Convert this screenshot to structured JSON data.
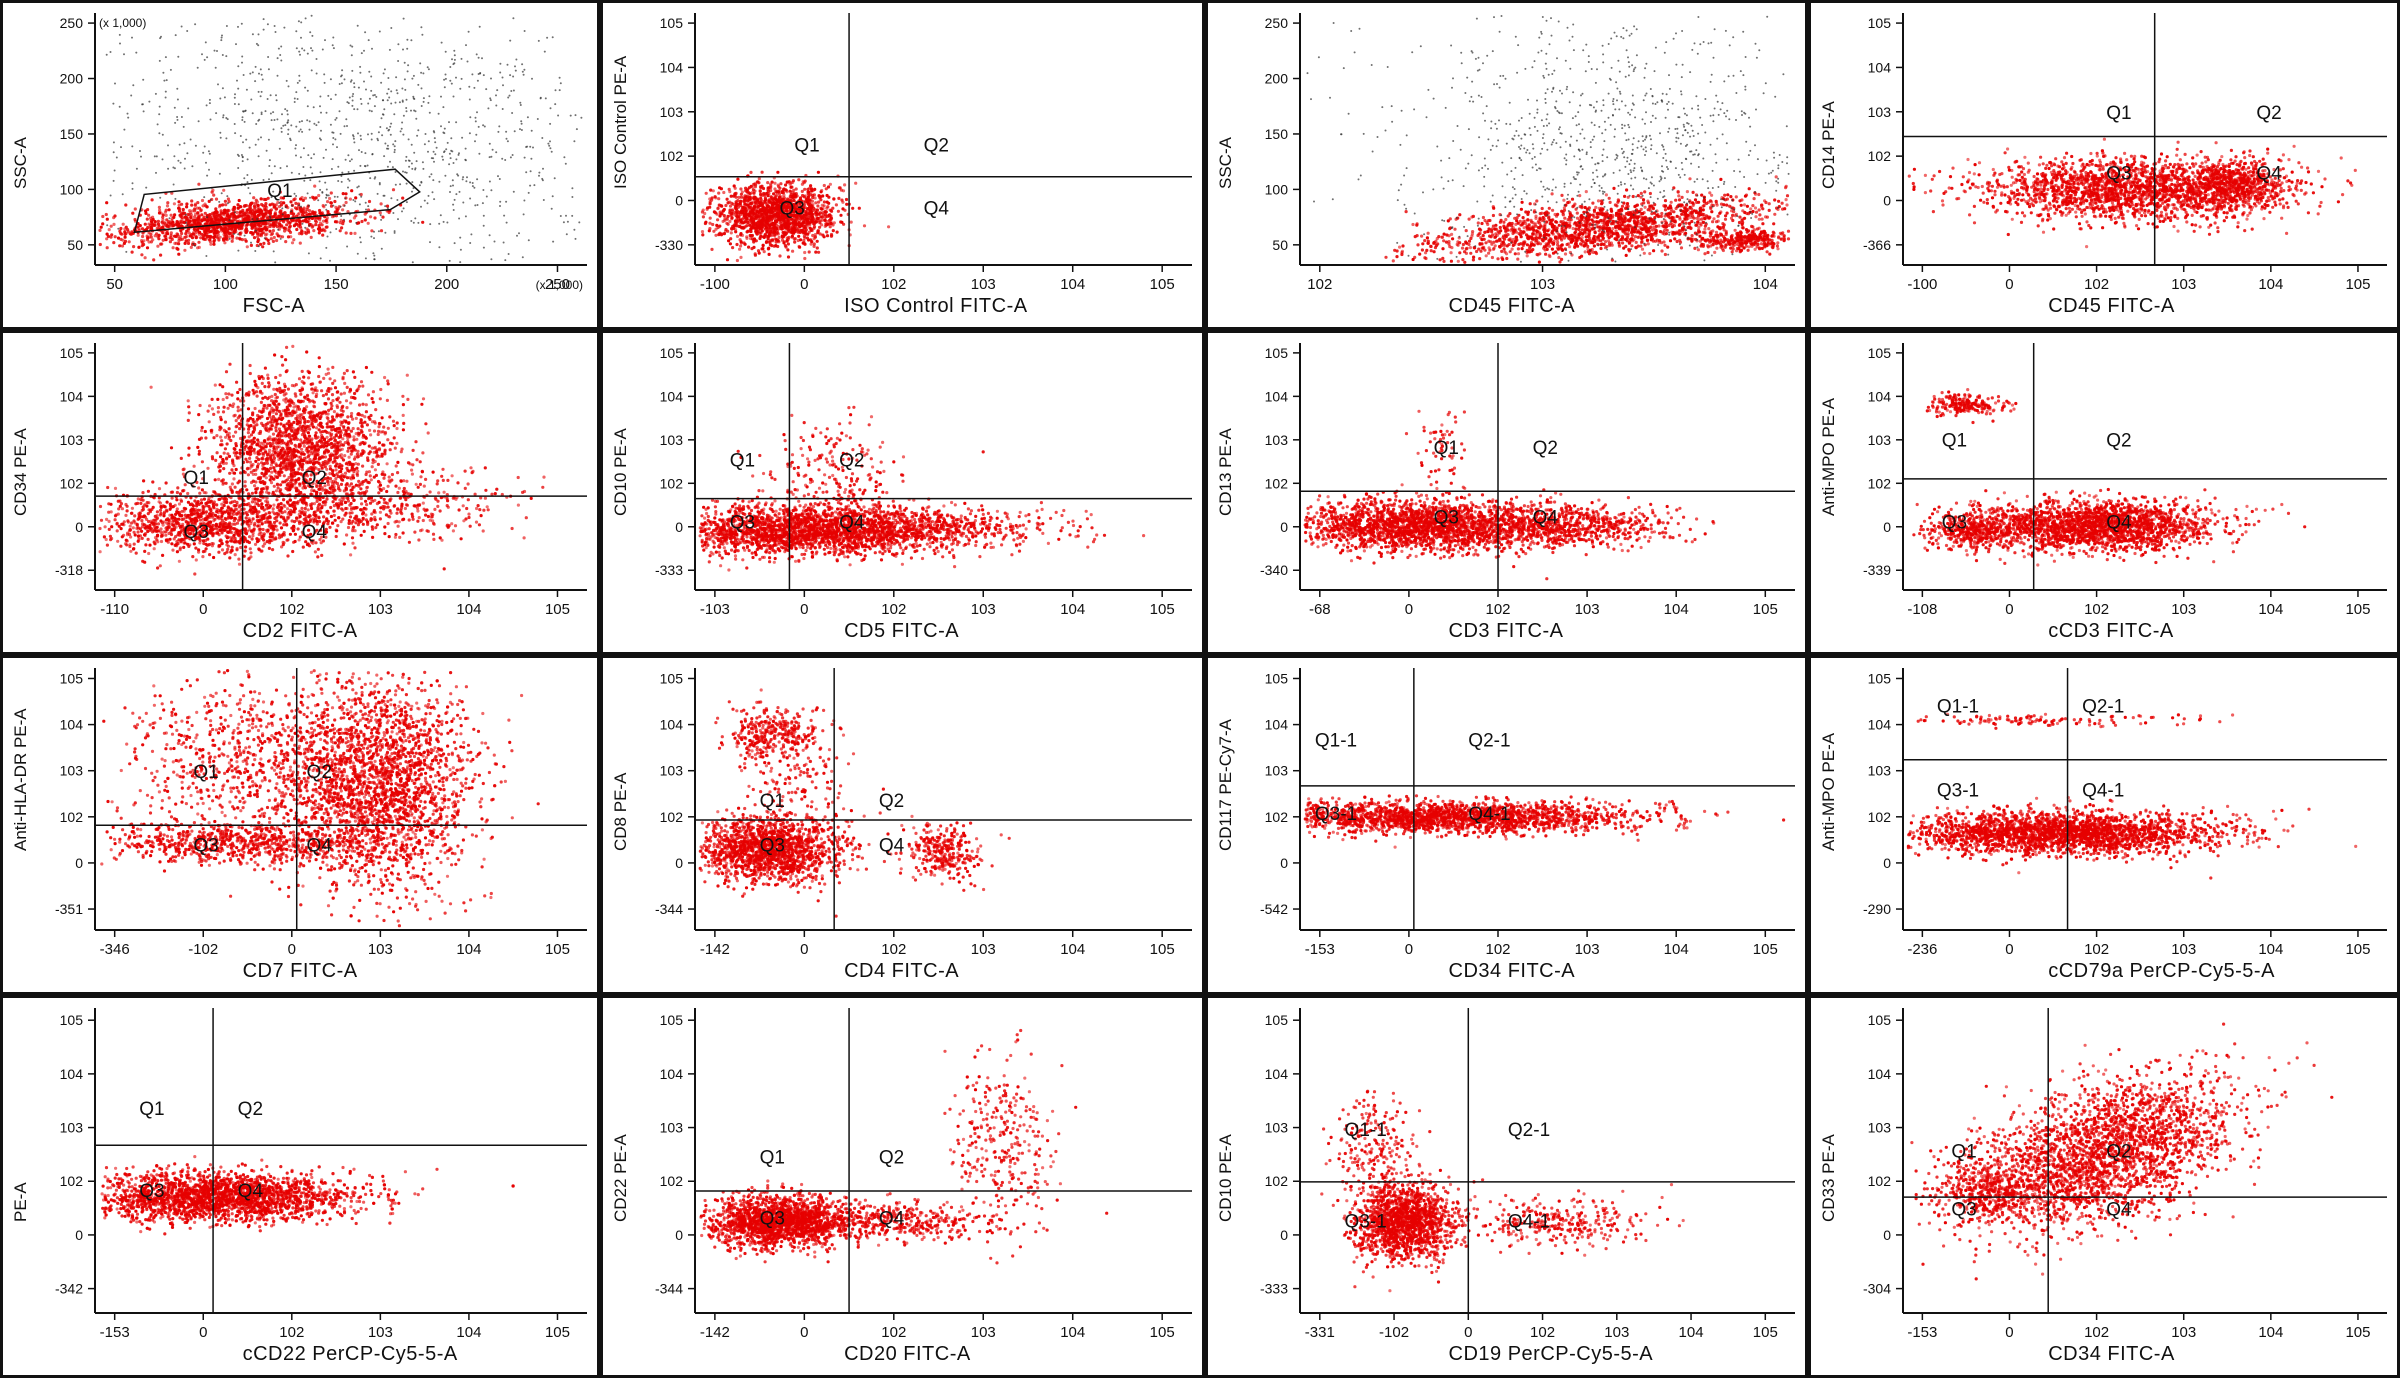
{
  "figure": {
    "background": "#ffffff",
    "dot_color": "#e60000",
    "sparse_color": "#333333",
    "line_color": "#111111"
  },
  "chart_data": [
    {
      "type": "scatter",
      "xlabel": "FSC-A",
      "ylabel": "SSC-A",
      "x_scale_note": "(x 1,000)",
      "y_scale_note": "(x 1,000)",
      "xticks": [
        "50",
        "100",
        "150",
        "200",
        "250"
      ],
      "yticks": [
        "50",
        "100",
        "150",
        "200",
        "250"
      ],
      "gates": [
        {
          "label": "Q1",
          "shape": "polygon"
        }
      ],
      "populations": [
        {
          "name": "red",
          "color": "#e60000"
        },
        {
          "name": "sparse",
          "color": "#333333"
        }
      ]
    },
    {
      "type": "scatter",
      "xlabel": "ISO Control FITC-A",
      "ylabel": "ISO Control PE-A",
      "xticks": [
        "-100",
        "0",
        "10^2",
        "10^3",
        "10^4",
        "10^5"
      ],
      "yticks": [
        "-330",
        "0",
        "10^2",
        "10^3",
        "10^4",
        "10^5"
      ],
      "quadrants": [
        "Q1",
        "Q2",
        "Q3",
        "Q4"
      ]
    },
    {
      "type": "scatter",
      "xlabel": "CD45 FITC-A",
      "ylabel": "SSC-A",
      "xticks": [
        "10^2",
        "10^3",
        "10^4"
      ],
      "yticks": [
        "50",
        "100",
        "150",
        "200",
        "250"
      ]
    },
    {
      "type": "scatter",
      "xlabel": "CD45 FITC-A",
      "ylabel": "CD14 PE-A",
      "xticks": [
        "-100",
        "0",
        "10^2",
        "10^3",
        "10^4",
        "10^5"
      ],
      "yticks": [
        "-366",
        "0",
        "10^2",
        "10^3",
        "10^4",
        "10^5"
      ],
      "quadrants": [
        "Q1",
        "Q2",
        "Q3",
        "Q4"
      ]
    },
    {
      "type": "scatter",
      "xlabel": "CD2 FITC-A",
      "ylabel": "CD34 PE-A",
      "xticks": [
        "-110",
        "0",
        "10^2",
        "10^3",
        "10^4",
        "10^5"
      ],
      "yticks": [
        "-318",
        "0",
        "10^2",
        "10^3",
        "10^4",
        "10^5"
      ],
      "quadrants": [
        "Q1",
        "Q2",
        "Q3",
        "Q4"
      ]
    },
    {
      "type": "scatter",
      "xlabel": "CD5 FITC-A",
      "ylabel": "CD10 PE-A",
      "xticks": [
        "-103",
        "0",
        "10^2",
        "10^3",
        "10^4",
        "10^5"
      ],
      "yticks": [
        "-333",
        "0",
        "10^2",
        "10^3",
        "10^4",
        "10^5"
      ],
      "quadrants": [
        "Q1",
        "Q2",
        "Q3",
        "Q4"
      ]
    },
    {
      "type": "scatter",
      "xlabel": "CD3 FITC-A",
      "ylabel": "CD13 PE-A",
      "xticks": [
        "-68",
        "0",
        "10^2",
        "10^3",
        "10^4",
        "10^5"
      ],
      "yticks": [
        "-340",
        "0",
        "10^2",
        "10^3",
        "10^4",
        "10^5"
      ],
      "quadrants": [
        "Q1",
        "Q2",
        "Q3",
        "Q4"
      ]
    },
    {
      "type": "scatter",
      "xlabel": "cCD3 FITC-A",
      "ylabel": "Anti-MPO PE-A",
      "xticks": [
        "-108",
        "0",
        "10^2",
        "10^3",
        "10^4",
        "10^5"
      ],
      "yticks": [
        "-339",
        "0",
        "10^2",
        "10^3",
        "10^4",
        "10^5"
      ],
      "quadrants": [
        "Q1",
        "Q2",
        "Q3",
        "Q4"
      ]
    },
    {
      "type": "scatter",
      "xlabel": "CD7 FITC-A",
      "ylabel": "Anti-HLA-DR PE-A",
      "xticks": [
        "-346",
        "-10^2",
        "0",
        "10^3",
        "10^4",
        "10^5"
      ],
      "yticks": [
        "-351",
        "0",
        "10^2",
        "10^3",
        "10^4",
        "10^5"
      ],
      "quadrants": [
        "Q1",
        "Q2",
        "Q3",
        "Q4"
      ]
    },
    {
      "type": "scatter",
      "xlabel": "CD4 FITC-A",
      "ylabel": "CD8 PE-A",
      "xticks": [
        "-142",
        "0",
        "10^2",
        "10^3",
        "10^4",
        "10^5"
      ],
      "yticks": [
        "-344",
        "0",
        "10^2",
        "10^3",
        "10^4",
        "10^5"
      ],
      "quadrants": [
        "Q1",
        "Q2",
        "Q3",
        "Q4"
      ]
    },
    {
      "type": "scatter",
      "xlabel": "CD34 FITC-A",
      "ylabel": "CD117 PE-Cy7-A",
      "xticks": [
        "-153",
        "0",
        "10^2",
        "10^3",
        "10^4",
        "10^5"
      ],
      "yticks": [
        "-542",
        "0",
        "10^2",
        "10^3",
        "10^4",
        "10^5"
      ],
      "quadrants": [
        "Q1-1",
        "Q2-1",
        "Q3-1",
        "Q4-1"
      ]
    },
    {
      "type": "scatter",
      "xlabel": "cCD79a PerCP-Cy5-5-A",
      "ylabel": "Anti-MPO PE-A",
      "xticks": [
        "-236",
        "0",
        "10^2",
        "10^3",
        "10^4",
        "10^5"
      ],
      "yticks": [
        "-290",
        "0",
        "10^2",
        "10^3",
        "10^4",
        "10^5"
      ],
      "quadrants": [
        "Q1-1",
        "Q2-1",
        "Q3-1",
        "Q4-1"
      ]
    },
    {
      "type": "scatter",
      "xlabel": "cCD22 PerCP-Cy5-5-A",
      "ylabel": "PE-A",
      "xticks": [
        "-153",
        "0",
        "10^2",
        "10^3",
        "10^4",
        "10^5"
      ],
      "yticks": [
        "-342",
        "0",
        "10^2",
        "10^3",
        "10^4",
        "10^5"
      ],
      "quadrants": [
        "Q1",
        "Q2",
        "Q3",
        "Q4"
      ]
    },
    {
      "type": "scatter",
      "xlabel": "CD20 FITC-A",
      "ylabel": "CD22 PE-A",
      "xticks": [
        "-142",
        "0",
        "10^2",
        "10^3",
        "10^4",
        "10^5"
      ],
      "yticks": [
        "-344",
        "0",
        "10^2",
        "10^3",
        "10^4",
        "10^5"
      ],
      "quadrants": [
        "Q1",
        "Q2",
        "Q3",
        "Q4"
      ]
    },
    {
      "type": "scatter",
      "xlabel": "CD19 PerCP-Cy5-5-A",
      "ylabel": "CD10 PE-A",
      "xticks": [
        "-331",
        "-10^2",
        "0",
        "10^2",
        "10^3",
        "10^4",
        "10^5"
      ],
      "yticks": [
        "-333",
        "0",
        "10^2",
        "10^3",
        "10^4",
        "10^5"
      ],
      "quadrants": [
        "Q1-1",
        "Q2-1",
        "Q3-1",
        "Q4-1"
      ]
    },
    {
      "type": "scatter",
      "xlabel": "CD34 FITC-A",
      "ylabel": "CD33 PE-A",
      "xticks": [
        "-153",
        "0",
        "10^2",
        "10^3",
        "10^4",
        "10^5"
      ],
      "yticks": [
        "-304",
        "0",
        "10^2",
        "10^3",
        "10^4",
        "10^5"
      ],
      "quadrants": [
        "Q1",
        "Q2",
        "Q3",
        "Q4"
      ]
    }
  ]
}
